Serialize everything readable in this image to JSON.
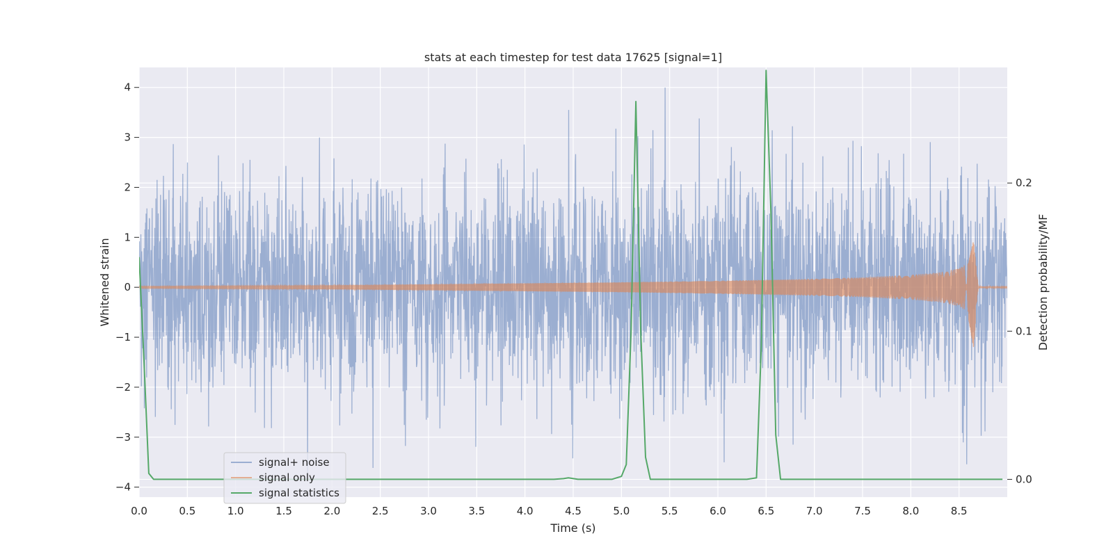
{
  "chart_data": {
    "type": "line",
    "title": "stats at each timestep for test data 17625 [signal=1]",
    "xlabel": "Time (s)",
    "ylabel": "Whitened strain",
    "y2label": "Detection probability/MF",
    "xlim": [
      0.0,
      9.0
    ],
    "ylim": [
      -4.2,
      4.4
    ],
    "y2lim": [
      -0.012,
      0.278
    ],
    "x_ticks": [
      "0.0",
      "0.5",
      "1.0",
      "1.5",
      "2.0",
      "2.5",
      "3.0",
      "3.5",
      "4.0",
      "4.5",
      "5.0",
      "5.5",
      "6.0",
      "6.5",
      "7.0",
      "7.5",
      "8.0",
      "8.5"
    ],
    "y_ticks": [
      "4",
      "3",
      "2",
      "1",
      "0",
      "−1",
      "−2",
      "−3",
      "−4"
    ],
    "y2_ticks": [
      "0.2",
      "0.1",
      "0.0"
    ],
    "grid": true,
    "legend_position": "lower-left",
    "series": [
      {
        "name": "signal+ noise",
        "axis": "left",
        "color": "#4c72b0",
        "description": "Whitened noise with embedded signal, values mostly between -3.8 and 4.0",
        "amplitude_range": [
          -3.85,
          4.02
        ]
      },
      {
        "name": "signal only",
        "axis": "left",
        "color": "#dd8452",
        "description": "Chirp signal growing in amplitude until merger near 8.65 s",
        "envelope": {
          "x": [
            0.0,
            1.0,
            2.0,
            3.0,
            4.0,
            5.0,
            6.0,
            7.0,
            7.5,
            8.0,
            8.3,
            8.5,
            8.6,
            8.65,
            8.7,
            9.0
          ],
          "y": [
            0.02,
            0.03,
            0.04,
            0.06,
            0.08,
            0.1,
            0.13,
            0.17,
            0.2,
            0.25,
            0.3,
            0.38,
            0.5,
            0.92,
            0.02,
            0.01
          ]
        }
      },
      {
        "name": "signal statistics",
        "axis": "right",
        "color": "#55a868",
        "x": [
          0.0,
          0.05,
          0.1,
          0.15,
          4.3,
          4.4,
          4.45,
          4.55,
          4.9,
          5.0,
          5.05,
          5.1,
          5.15,
          5.2,
          5.25,
          5.3,
          5.35,
          6.3,
          6.4,
          6.45,
          6.5,
          6.55,
          6.6,
          6.65,
          6.7,
          8.95
        ],
        "y": [
          0.15,
          0.081,
          0.004,
          0.0,
          0.0,
          0.0005,
          0.001,
          0.0,
          0.0,
          0.002,
          0.01,
          0.1,
          0.255,
          0.1,
          0.015,
          0.0,
          0.0,
          0.0,
          0.001,
          0.09,
          0.276,
          0.18,
          0.03,
          0.0,
          0.0,
          0.0
        ]
      }
    ]
  }
}
